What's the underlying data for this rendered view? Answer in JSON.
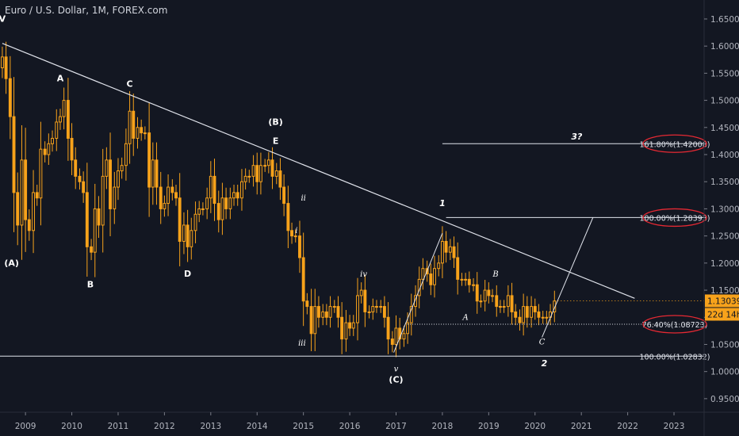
{
  "header": {
    "title": "Euro / U.S. Dollar, 1M, FOREX.com"
  },
  "price_badge": {
    "price": "1.13039",
    "countdown": "22d 14h",
    "color": "#f7a21b"
  },
  "colors": {
    "candles": "#f7a21b",
    "lines": "#e0e3eb",
    "circles": "#e52933",
    "background": "#131722"
  },
  "chart_data": {
    "type": "candlestick",
    "symbol": "EURUSD",
    "interval": "1M",
    "x_ticks": [
      "2009",
      "2010",
      "2011",
      "2012",
      "2013",
      "2014",
      "2015",
      "2016",
      "2017",
      "2018",
      "2019",
      "2020",
      "2021",
      "2022",
      "2023"
    ],
    "y_ticks": [
      "0.95000",
      "1.00000",
      "1.05000",
      "1.10000",
      "1.15000",
      "1.20000",
      "1.25000",
      "1.30000",
      "1.35000",
      "1.40000",
      "1.45000",
      "1.50000",
      "1.55000",
      "1.60000",
      "1.65000"
    ],
    "ylim": [
      0.925,
      1.685
    ],
    "xlim": [
      2008.45,
      2023.65
    ],
    "close_anchors": [
      [
        2008.5,
        1.58
      ],
      [
        2008.58,
        1.54
      ],
      [
        2008.67,
        1.47
      ],
      [
        2008.75,
        1.33
      ],
      [
        2008.83,
        1.27
      ],
      [
        2008.92,
        1.39
      ],
      [
        2009.0,
        1.28
      ],
      [
        2009.08,
        1.26
      ],
      [
        2009.17,
        1.33
      ],
      [
        2009.25,
        1.32
      ],
      [
        2009.33,
        1.41
      ],
      [
        2009.42,
        1.4
      ],
      [
        2009.5,
        1.42
      ],
      [
        2009.58,
        1.43
      ],
      [
        2009.67,
        1.46
      ],
      [
        2009.75,
        1.47
      ],
      [
        2009.83,
        1.5
      ],
      [
        2009.92,
        1.43
      ],
      [
        2010.0,
        1.39
      ],
      [
        2010.08,
        1.36
      ],
      [
        2010.17,
        1.35
      ],
      [
        2010.25,
        1.33
      ],
      [
        2010.33,
        1.23
      ],
      [
        2010.42,
        1.22
      ],
      [
        2010.5,
        1.3
      ],
      [
        2010.58,
        1.27
      ],
      [
        2010.67,
        1.36
      ],
      [
        2010.75,
        1.39
      ],
      [
        2010.83,
        1.3
      ],
      [
        2010.92,
        1.34
      ],
      [
        2011.0,
        1.37
      ],
      [
        2011.08,
        1.38
      ],
      [
        2011.17,
        1.42
      ],
      [
        2011.25,
        1.48
      ],
      [
        2011.33,
        1.43
      ],
      [
        2011.42,
        1.45
      ],
      [
        2011.5,
        1.44
      ],
      [
        2011.58,
        1.44
      ],
      [
        2011.67,
        1.34
      ],
      [
        2011.75,
        1.39
      ],
      [
        2011.83,
        1.34
      ],
      [
        2011.92,
        1.3
      ],
      [
        2012.0,
        1.31
      ],
      [
        2012.08,
        1.34
      ],
      [
        2012.17,
        1.33
      ],
      [
        2012.25,
        1.32
      ],
      [
        2012.33,
        1.24
      ],
      [
        2012.42,
        1.27
      ],
      [
        2012.5,
        1.23
      ],
      [
        2012.58,
        1.26
      ],
      [
        2012.67,
        1.29
      ],
      [
        2012.75,
        1.3
      ],
      [
        2012.83,
        1.3
      ],
      [
        2012.92,
        1.32
      ],
      [
        2013.0,
        1.36
      ],
      [
        2013.08,
        1.31
      ],
      [
        2013.17,
        1.28
      ],
      [
        2013.25,
        1.32
      ],
      [
        2013.33,
        1.3
      ],
      [
        2013.42,
        1.32
      ],
      [
        2013.5,
        1.33
      ],
      [
        2013.58,
        1.32
      ],
      [
        2013.67,
        1.35
      ],
      [
        2013.75,
        1.36
      ],
      [
        2013.83,
        1.36
      ],
      [
        2013.92,
        1.38
      ],
      [
        2014.0,
        1.35
      ],
      [
        2014.08,
        1.38
      ],
      [
        2014.17,
        1.38
      ],
      [
        2014.25,
        1.39
      ],
      [
        2014.33,
        1.36
      ],
      [
        2014.42,
        1.37
      ],
      [
        2014.5,
        1.34
      ],
      [
        2014.58,
        1.31
      ],
      [
        2014.67,
        1.26
      ],
      [
        2014.75,
        1.25
      ],
      [
        2014.83,
        1.25
      ],
      [
        2014.92,
        1.21
      ],
      [
        2015.0,
        1.13
      ],
      [
        2015.08,
        1.12
      ],
      [
        2015.17,
        1.07
      ],
      [
        2015.25,
        1.12
      ],
      [
        2015.33,
        1.1
      ],
      [
        2015.42,
        1.11
      ],
      [
        2015.5,
        1.1
      ],
      [
        2015.58,
        1.12
      ],
      [
        2015.67,
        1.12
      ],
      [
        2015.75,
        1.1
      ],
      [
        2015.83,
        1.06
      ],
      [
        2015.92,
        1.09
      ],
      [
        2016.0,
        1.08
      ],
      [
        2016.08,
        1.09
      ],
      [
        2016.17,
        1.14
      ],
      [
        2016.25,
        1.15
      ],
      [
        2016.33,
        1.11
      ],
      [
        2016.42,
        1.11
      ],
      [
        2016.5,
        1.12
      ],
      [
        2016.58,
        1.12
      ],
      [
        2016.67,
        1.12
      ],
      [
        2016.75,
        1.1
      ],
      [
        2016.83,
        1.06
      ],
      [
        2016.92,
        1.05
      ],
      [
        2017.0,
        1.08
      ],
      [
        2017.08,
        1.06
      ],
      [
        2017.17,
        1.07
      ],
      [
        2017.25,
        1.09
      ],
      [
        2017.33,
        1.12
      ],
      [
        2017.42,
        1.14
      ],
      [
        2017.5,
        1.17
      ],
      [
        2017.58,
        1.19
      ],
      [
        2017.67,
        1.18
      ],
      [
        2017.75,
        1.16
      ],
      [
        2017.83,
        1.19
      ],
      [
        2017.92,
        1.2
      ],
      [
        2018.0,
        1.24
      ],
      [
        2018.08,
        1.22
      ],
      [
        2018.17,
        1.23
      ],
      [
        2018.25,
        1.21
      ],
      [
        2018.33,
        1.17
      ],
      [
        2018.42,
        1.17
      ],
      [
        2018.5,
        1.17
      ],
      [
        2018.58,
        1.16
      ],
      [
        2018.67,
        1.16
      ],
      [
        2018.75,
        1.13
      ],
      [
        2018.83,
        1.13
      ],
      [
        2018.92,
        1.15
      ],
      [
        2019.0,
        1.14
      ],
      [
        2019.08,
        1.14
      ],
      [
        2019.17,
        1.12
      ],
      [
        2019.25,
        1.12
      ],
      [
        2019.33,
        1.12
      ],
      [
        2019.42,
        1.14
      ],
      [
        2019.5,
        1.11
      ],
      [
        2019.58,
        1.1
      ],
      [
        2019.67,
        1.09
      ],
      [
        2019.75,
        1.12
      ],
      [
        2019.83,
        1.1
      ],
      [
        2019.92,
        1.12
      ],
      [
        2020.0,
        1.11
      ],
      [
        2020.08,
        1.1
      ],
      [
        2020.17,
        1.1
      ],
      [
        2020.25,
        1.1
      ],
      [
        2020.33,
        1.11
      ],
      [
        2020.42,
        1.13
      ]
    ],
    "trendline": {
      "from": [
        2008.5,
        1.605
      ],
      "to": [
        2022.15,
        1.135
      ]
    },
    "fib_levels": [
      {
        "label": "161.80%(1.42008)",
        "price": 1.42008,
        "x_start": 2018.0,
        "circled": true
      },
      {
        "label": "100.00%(1.28393)",
        "price": 1.28393,
        "x_start": 2018.08,
        "circled": true
      },
      {
        "label": "76.40%(1.08723)",
        "price": 1.08723,
        "x_start": 2017.25,
        "circled": true,
        "dotted": true
      },
      {
        "label": "100.00%(1.02832)",
        "price": 1.02832,
        "x_start": 2008.45,
        "circled": false
      }
    ],
    "projection_lines": [
      {
        "from": [
          2016.95,
          1.035
        ],
        "to": [
          2018.0,
          1.255
        ]
      },
      {
        "from": [
          2020.15,
          1.063
        ],
        "to": [
          2021.25,
          1.284
        ]
      }
    ],
    "wave_labels": [
      {
        "text": "V",
        "x": 2008.5,
        "y": 1.645,
        "style": "bold"
      },
      {
        "text": "A",
        "x": 2009.75,
        "y": 1.535,
        "style": "bold"
      },
      {
        "text": "C",
        "x": 2011.25,
        "y": 1.525,
        "style": "bold"
      },
      {
        "text": "(B)",
        "x": 2014.4,
        "y": 1.455,
        "style": "bold"
      },
      {
        "text": "E",
        "x": 2014.4,
        "y": 1.42,
        "style": "bold"
      },
      {
        "text": "(A)",
        "x": 2008.7,
        "y": 1.195,
        "style": "bold"
      },
      {
        "text": "B",
        "x": 2010.4,
        "y": 1.155,
        "style": "bold"
      },
      {
        "text": "D",
        "x": 2012.5,
        "y": 1.175,
        "style": "bold"
      },
      {
        "text": "ii",
        "x": 2015.0,
        "y": 1.315,
        "style": "italic"
      },
      {
        "text": "i",
        "x": 2014.85,
        "y": 1.255,
        "style": "italic"
      },
      {
        "text": "iv",
        "x": 2016.3,
        "y": 1.175,
        "style": "italic"
      },
      {
        "text": "iii",
        "x": 2014.97,
        "y": 1.048,
        "style": "italic"
      },
      {
        "text": "v",
        "x": 2017.0,
        "y": 1.0,
        "style": "italic"
      },
      {
        "text": "(C)",
        "x": 2017.0,
        "y": 0.98,
        "style": "bold"
      },
      {
        "text": "1",
        "x": 2018.0,
        "y": 1.305,
        "style": "bold-italic"
      },
      {
        "text": "B",
        "x": 2019.15,
        "y": 1.175,
        "style": "italic"
      },
      {
        "text": "A",
        "x": 2018.5,
        "y": 1.095,
        "style": "italic"
      },
      {
        "text": "C",
        "x": 2020.15,
        "y": 1.05,
        "style": "italic"
      },
      {
        "text": "2",
        "x": 2020.2,
        "y": 1.01,
        "style": "bold-italic"
      },
      {
        "text": "3?",
        "x": 2020.9,
        "y": 1.428,
        "style": "bold-italic"
      }
    ]
  }
}
